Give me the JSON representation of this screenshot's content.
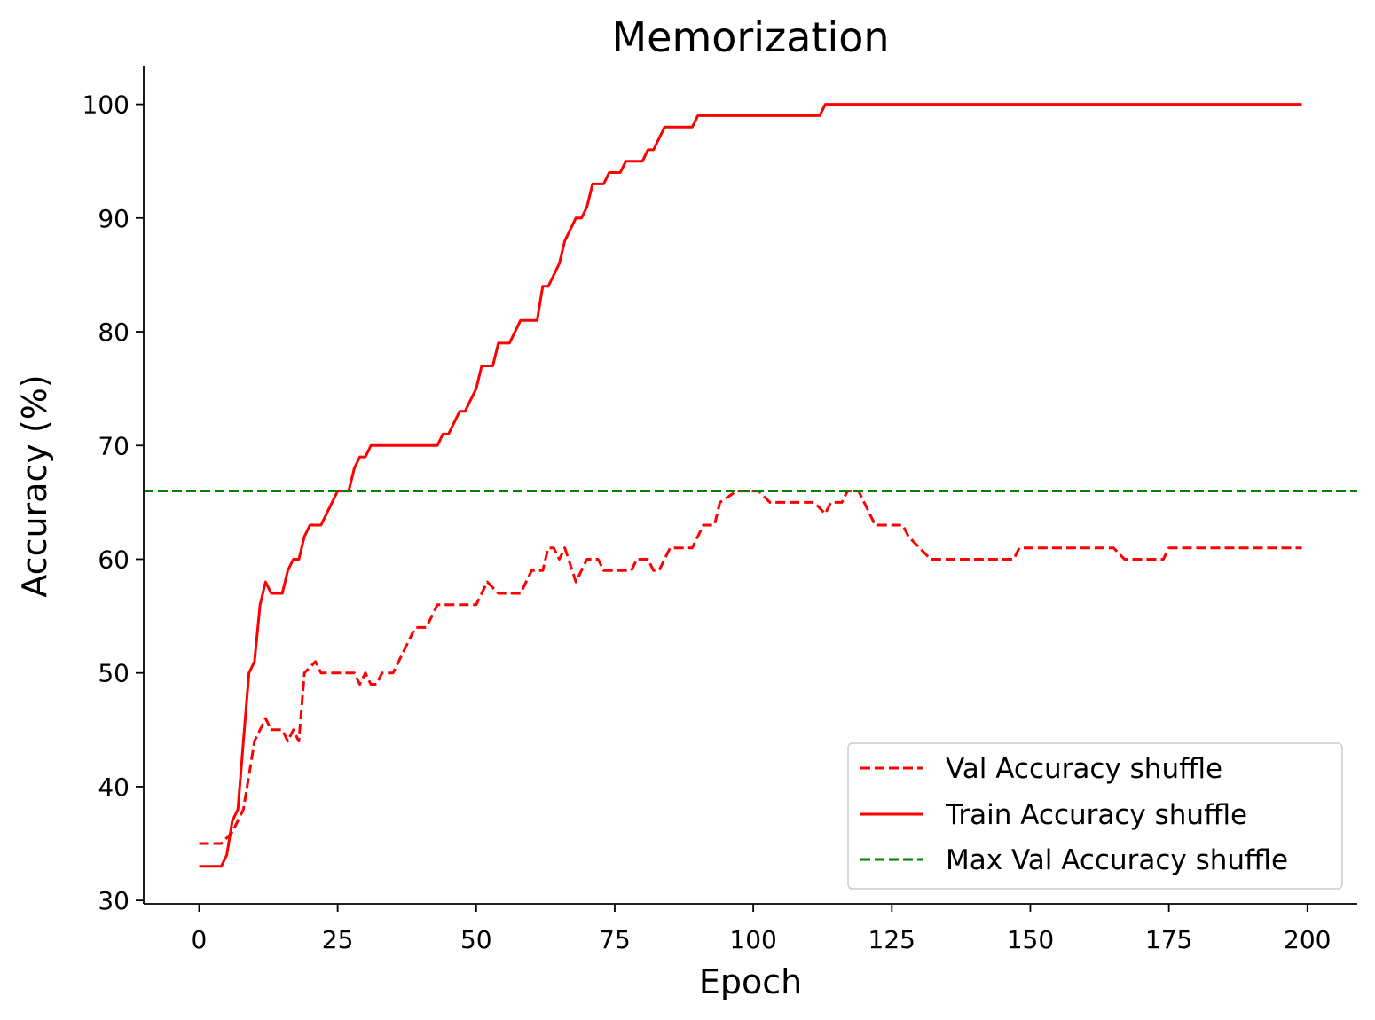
{
  "chart_data": {
    "type": "line",
    "title": "Memorization",
    "xlabel": "Epoch",
    "ylabel": "Accuracy (%)",
    "xlim": [
      -10,
      209
    ],
    "ylim": [
      29.7,
      103.4
    ],
    "xticks": [
      0,
      25,
      50,
      75,
      100,
      125,
      150,
      175,
      200
    ],
    "yticks": [
      30,
      40,
      50,
      60,
      70,
      80,
      90,
      100
    ],
    "grid": false,
    "legend_position": "lower-right",
    "series": [
      {
        "name": "Val Accuracy shuffle",
        "color": "#ff0000",
        "style": "dashed",
        "points": [
          [
            0,
            35
          ],
          [
            4,
            35
          ],
          [
            6,
            36
          ],
          [
            8,
            38
          ],
          [
            9,
            41
          ],
          [
            10,
            44
          ],
          [
            11,
            45
          ],
          [
            12,
            46
          ],
          [
            13,
            45
          ],
          [
            15,
            45
          ],
          [
            16,
            44
          ],
          [
            17,
            45
          ],
          [
            18,
            44
          ],
          [
            19,
            50
          ],
          [
            21,
            51
          ],
          [
            22,
            50
          ],
          [
            28,
            50
          ],
          [
            29,
            49
          ],
          [
            30,
            50
          ],
          [
            31,
            49
          ],
          [
            32,
            49
          ],
          [
            33,
            50
          ],
          [
            35,
            50
          ],
          [
            37,
            52
          ],
          [
            39,
            54
          ],
          [
            41,
            54
          ],
          [
            43,
            56
          ],
          [
            50,
            56
          ],
          [
            52,
            58
          ],
          [
            54,
            57
          ],
          [
            58,
            57
          ],
          [
            60,
            59
          ],
          [
            62,
            59
          ],
          [
            63,
            61
          ],
          [
            64,
            61
          ],
          [
            65,
            60
          ],
          [
            66,
            61
          ],
          [
            68,
            58
          ],
          [
            70,
            60
          ],
          [
            72,
            60
          ],
          [
            73,
            59
          ],
          [
            78,
            59
          ],
          [
            79,
            60
          ],
          [
            81,
            60
          ],
          [
            82,
            59
          ],
          [
            83,
            59
          ],
          [
            85,
            61
          ],
          [
            89,
            61
          ],
          [
            91,
            63
          ],
          [
            93,
            63
          ],
          [
            94,
            65
          ],
          [
            97,
            66
          ],
          [
            101,
            66
          ],
          [
            103,
            65
          ],
          [
            111,
            65
          ],
          [
            113,
            64
          ],
          [
            114,
            65
          ],
          [
            116,
            65
          ],
          [
            117,
            66
          ],
          [
            119,
            66
          ],
          [
            120,
            65
          ],
          [
            122,
            63
          ],
          [
            127,
            63
          ],
          [
            128,
            62
          ],
          [
            130,
            61
          ],
          [
            132,
            60
          ],
          [
            147,
            60
          ],
          [
            148,
            61
          ],
          [
            165,
            61
          ],
          [
            167,
            60
          ],
          [
            174,
            60
          ],
          [
            175,
            61
          ],
          [
            199,
            61
          ]
        ]
      },
      {
        "name": "Train Accuracy shuffle",
        "color": "#ff0000",
        "style": "solid",
        "points": [
          [
            0,
            33
          ],
          [
            4,
            33
          ],
          [
            5,
            34
          ],
          [
            6,
            37
          ],
          [
            7,
            38
          ],
          [
            8,
            44
          ],
          [
            9,
            50
          ],
          [
            10,
            51
          ],
          [
            11,
            56
          ],
          [
            12,
            58
          ],
          [
            13,
            57
          ],
          [
            15,
            57
          ],
          [
            16,
            59
          ],
          [
            17,
            60
          ],
          [
            18,
            60
          ],
          [
            19,
            62
          ],
          [
            20,
            63
          ],
          [
            22,
            63
          ],
          [
            23,
            64
          ],
          [
            24,
            65
          ],
          [
            25,
            66
          ],
          [
            27,
            66
          ],
          [
            28,
            68
          ],
          [
            29,
            69
          ],
          [
            30,
            69
          ],
          [
            31,
            70
          ],
          [
            43,
            70
          ],
          [
            44,
            71
          ],
          [
            45,
            71
          ],
          [
            47,
            73
          ],
          [
            48,
            73
          ],
          [
            49,
            74
          ],
          [
            50,
            75
          ],
          [
            51,
            77
          ],
          [
            53,
            77
          ],
          [
            54,
            79
          ],
          [
            56,
            79
          ],
          [
            58,
            81
          ],
          [
            61,
            81
          ],
          [
            62,
            84
          ],
          [
            63,
            84
          ],
          [
            65,
            86
          ],
          [
            66,
            88
          ],
          [
            68,
            90
          ],
          [
            69,
            90
          ],
          [
            70,
            91
          ],
          [
            71,
            93
          ],
          [
            73,
            93
          ],
          [
            74,
            94
          ],
          [
            76,
            94
          ],
          [
            77,
            95
          ],
          [
            80,
            95
          ],
          [
            81,
            96
          ],
          [
            82,
            96
          ],
          [
            84,
            98
          ],
          [
            89,
            98
          ],
          [
            90,
            99
          ],
          [
            112,
            99
          ],
          [
            113,
            100
          ],
          [
            199,
            100
          ]
        ]
      },
      {
        "name": "Max Val Accuracy shuffle",
        "color": "#008000",
        "style": "dashed",
        "hline": 66
      }
    ]
  }
}
